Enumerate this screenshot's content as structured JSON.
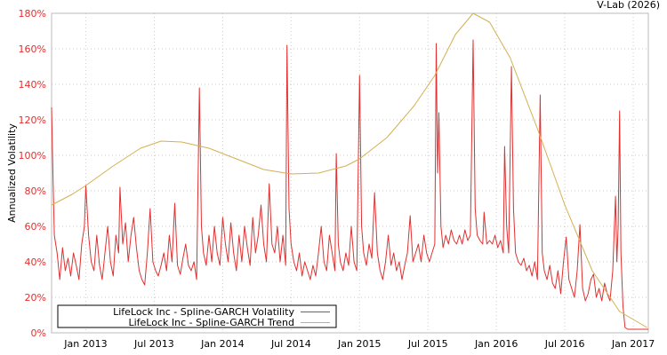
{
  "chart_data": {
    "type": "line",
    "credit": "V-Lab (2026)",
    "ylabel": "Annualized Volatility",
    "xlabel": "",
    "xlim": [
      2012.75,
      2017.11
    ],
    "ylim": [
      0,
      180
    ],
    "grid": true,
    "legend_placement": "bottom-left",
    "y_ticks": [
      0,
      20,
      40,
      60,
      80,
      100,
      120,
      140,
      160,
      180
    ],
    "y_tick_labels": [
      "0%",
      "20%",
      "40%",
      "60%",
      "80%",
      "100%",
      "120%",
      "140%",
      "160%",
      "180%"
    ],
    "x_ticks": [
      2013.0,
      2013.5,
      2014.0,
      2014.5,
      2015.0,
      2015.5,
      2016.0,
      2016.5,
      2017.0
    ],
    "x_tick_labels": [
      "Jan 2013",
      "Jul 2013",
      "Jan 2014",
      "Jul 2014",
      "Jan 2015",
      "Jul 2015",
      "Jan 2016",
      "Jul 2016",
      "Jan 2017"
    ],
    "series": [
      {
        "name": "LifeLock Inc - Spline-GARCH Volatility",
        "color": "#e03030",
        "points": [
          [
            2012.75,
            127
          ],
          [
            2012.76,
            90
          ],
          [
            2012.77,
            55
          ],
          [
            2012.79,
            45
          ],
          [
            2012.81,
            30
          ],
          [
            2012.83,
            48
          ],
          [
            2012.85,
            35
          ],
          [
            2012.87,
            42
          ],
          [
            2012.89,
            32
          ],
          [
            2012.91,
            45
          ],
          [
            2012.93,
            38
          ],
          [
            2012.95,
            30
          ],
          [
            2012.97,
            50
          ],
          [
            2012.99,
            60
          ],
          [
            2013.0,
            83
          ],
          [
            2013.02,
            55
          ],
          [
            2013.04,
            40
          ],
          [
            2013.06,
            35
          ],
          [
            2013.08,
            55
          ],
          [
            2013.1,
            38
          ],
          [
            2013.12,
            30
          ],
          [
            2013.14,
            45
          ],
          [
            2013.16,
            60
          ],
          [
            2013.18,
            40
          ],
          [
            2013.2,
            32
          ],
          [
            2013.22,
            55
          ],
          [
            2013.24,
            45
          ],
          [
            2013.25,
            82
          ],
          [
            2013.27,
            50
          ],
          [
            2013.29,
            62
          ],
          [
            2013.31,
            40
          ],
          [
            2013.33,
            55
          ],
          [
            2013.35,
            65
          ],
          [
            2013.37,
            48
          ],
          [
            2013.39,
            35
          ],
          [
            2013.41,
            30
          ],
          [
            2013.43,
            27
          ],
          [
            2013.45,
            45
          ],
          [
            2013.47,
            70
          ],
          [
            2013.49,
            40
          ],
          [
            2013.51,
            35
          ],
          [
            2013.53,
            32
          ],
          [
            2013.55,
            38
          ],
          [
            2013.57,
            45
          ],
          [
            2013.59,
            35
          ],
          [
            2013.61,
            55
          ],
          [
            2013.63,
            40
          ],
          [
            2013.65,
            73
          ],
          [
            2013.67,
            38
          ],
          [
            2013.69,
            33
          ],
          [
            2013.71,
            42
          ],
          [
            2013.73,
            50
          ],
          [
            2013.75,
            38
          ],
          [
            2013.77,
            35
          ],
          [
            2013.79,
            40
          ],
          [
            2013.81,
            30
          ],
          [
            2013.83,
            138
          ],
          [
            2013.845,
            60
          ],
          [
            2013.86,
            45
          ],
          [
            2013.88,
            38
          ],
          [
            2013.9,
            55
          ],
          [
            2013.92,
            40
          ],
          [
            2013.94,
            60
          ],
          [
            2013.96,
            45
          ],
          [
            2013.98,
            38
          ],
          [
            2014.0,
            65
          ],
          [
            2014.02,
            50
          ],
          [
            2014.04,
            40
          ],
          [
            2014.06,
            62
          ],
          [
            2014.08,
            45
          ],
          [
            2014.1,
            35
          ],
          [
            2014.12,
            55
          ],
          [
            2014.14,
            40
          ],
          [
            2014.16,
            60
          ],
          [
            2014.18,
            48
          ],
          [
            2014.2,
            38
          ],
          [
            2014.22,
            65
          ],
          [
            2014.24,
            45
          ],
          [
            2014.26,
            55
          ],
          [
            2014.28,
            72
          ],
          [
            2014.3,
            50
          ],
          [
            2014.32,
            40
          ],
          [
            2014.34,
            84
          ],
          [
            2014.36,
            50
          ],
          [
            2014.38,
            45
          ],
          [
            2014.4,
            60
          ],
          [
            2014.42,
            40
          ],
          [
            2014.44,
            55
          ],
          [
            2014.46,
            38
          ],
          [
            2014.47,
            162
          ],
          [
            2014.485,
            70
          ],
          [
            2014.5,
            50
          ],
          [
            2014.52,
            40
          ],
          [
            2014.54,
            35
          ],
          [
            2014.56,
            45
          ],
          [
            2014.58,
            32
          ],
          [
            2014.6,
            40
          ],
          [
            2014.62,
            35
          ],
          [
            2014.64,
            30
          ],
          [
            2014.66,
            38
          ],
          [
            2014.68,
            32
          ],
          [
            2014.7,
            45
          ],
          [
            2014.72,
            60
          ],
          [
            2014.74,
            40
          ],
          [
            2014.76,
            35
          ],
          [
            2014.78,
            55
          ],
          [
            2014.8,
            45
          ],
          [
            2014.82,
            35
          ],
          [
            2014.83,
            101
          ],
          [
            2014.845,
            50
          ],
          [
            2014.86,
            40
          ],
          [
            2014.88,
            35
          ],
          [
            2014.9,
            45
          ],
          [
            2014.92,
            38
          ],
          [
            2014.94,
            60
          ],
          [
            2014.96,
            40
          ],
          [
            2014.98,
            35
          ],
          [
            2015.0,
            145
          ],
          [
            2015.015,
            60
          ],
          [
            2015.03,
            45
          ],
          [
            2015.05,
            38
          ],
          [
            2015.07,
            50
          ],
          [
            2015.09,
            42
          ],
          [
            2015.11,
            79
          ],
          [
            2015.13,
            45
          ],
          [
            2015.15,
            35
          ],
          [
            2015.17,
            30
          ],
          [
            2015.19,
            40
          ],
          [
            2015.21,
            55
          ],
          [
            2015.23,
            38
          ],
          [
            2015.25,
            45
          ],
          [
            2015.27,
            35
          ],
          [
            2015.29,
            40
          ],
          [
            2015.31,
            30
          ],
          [
            2015.33,
            38
          ],
          [
            2015.35,
            45
          ],
          [
            2015.37,
            66
          ],
          [
            2015.39,
            40
          ],
          [
            2015.41,
            45
          ],
          [
            2015.43,
            50
          ],
          [
            2015.45,
            40
          ],
          [
            2015.47,
            55
          ],
          [
            2015.49,
            45
          ],
          [
            2015.51,
            40
          ],
          [
            2015.53,
            45
          ],
          [
            2015.55,
            50
          ],
          [
            2015.56,
            163
          ],
          [
            2015.57,
            90
          ],
          [
            2015.58,
            124
          ],
          [
            2015.595,
            60
          ],
          [
            2015.61,
            48
          ],
          [
            2015.63,
            55
          ],
          [
            2015.65,
            50
          ],
          [
            2015.67,
            58
          ],
          [
            2015.69,
            52
          ],
          [
            2015.71,
            50
          ],
          [
            2015.73,
            55
          ],
          [
            2015.75,
            50
          ],
          [
            2015.77,
            58
          ],
          [
            2015.79,
            52
          ],
          [
            2015.81,
            55
          ],
          [
            2015.83,
            165
          ],
          [
            2015.845,
            70
          ],
          [
            2015.86,
            55
          ],
          [
            2015.88,
            52
          ],
          [
            2015.9,
            50
          ],
          [
            2015.91,
            68
          ],
          [
            2015.93,
            50
          ],
          [
            2015.95,
            52
          ],
          [
            2015.97,
            50
          ],
          [
            2015.99,
            55
          ],
          [
            2016.01,
            48
          ],
          [
            2016.03,
            52
          ],
          [
            2016.05,
            45
          ],
          [
            2016.06,
            105
          ],
          [
            2016.075,
            60
          ],
          [
            2016.09,
            45
          ],
          [
            2016.11,
            150
          ],
          [
            2016.125,
            70
          ],
          [
            2016.14,
            45
          ],
          [
            2016.16,
            40
          ],
          [
            2016.18,
            38
          ],
          [
            2016.2,
            42
          ],
          [
            2016.22,
            35
          ],
          [
            2016.24,
            38
          ],
          [
            2016.26,
            32
          ],
          [
            2016.28,
            40
          ],
          [
            2016.3,
            30
          ],
          [
            2016.32,
            134
          ],
          [
            2016.335,
            45
          ],
          [
            2016.35,
            35
          ],
          [
            2016.37,
            30
          ],
          [
            2016.39,
            38
          ],
          [
            2016.41,
            28
          ],
          [
            2016.43,
            25
          ],
          [
            2016.45,
            35
          ],
          [
            2016.47,
            22
          ],
          [
            2016.49,
            40
          ],
          [
            2016.51,
            54
          ],
          [
            2016.53,
            30
          ],
          [
            2016.55,
            25
          ],
          [
            2016.57,
            20
          ],
          [
            2016.59,
            35
          ],
          [
            2016.61,
            61
          ],
          [
            2016.63,
            25
          ],
          [
            2016.65,
            18
          ],
          [
            2016.67,
            22
          ],
          [
            2016.69,
            30
          ],
          [
            2016.71,
            33
          ],
          [
            2016.73,
            20
          ],
          [
            2016.75,
            25
          ],
          [
            2016.77,
            18
          ],
          [
            2016.79,
            28
          ],
          [
            2016.81,
            22
          ],
          [
            2016.83,
            18
          ],
          [
            2016.85,
            35
          ],
          [
            2016.87,
            77
          ],
          [
            2016.88,
            40
          ],
          [
            2016.89,
            60
          ],
          [
            2016.9,
            125
          ],
          [
            2016.91,
            45
          ],
          [
            2016.925,
            15
          ],
          [
            2016.94,
            3
          ],
          [
            2016.96,
            2
          ],
          [
            2017.0,
            2
          ],
          [
            2017.05,
            2
          ],
          [
            2017.11,
            2
          ]
        ]
      },
      {
        "name": "LifeLock Inc - Spline-GARCH Trend",
        "color": "#d4b050",
        "points": [
          [
            2012.75,
            72
          ],
          [
            2012.9,
            78
          ],
          [
            2013.0,
            83
          ],
          [
            2013.2,
            94
          ],
          [
            2013.4,
            104
          ],
          [
            2013.55,
            108
          ],
          [
            2013.7,
            107.5
          ],
          [
            2013.9,
            104
          ],
          [
            2014.1,
            98
          ],
          [
            2014.3,
            92
          ],
          [
            2014.5,
            89.5
          ],
          [
            2014.7,
            90
          ],
          [
            2014.9,
            94
          ],
          [
            2015.0,
            98
          ],
          [
            2015.2,
            110
          ],
          [
            2015.4,
            128
          ],
          [
            2015.55,
            145
          ],
          [
            2015.7,
            168
          ],
          [
            2015.83,
            180
          ],
          [
            2015.95,
            175
          ],
          [
            2016.1,
            155
          ],
          [
            2016.3,
            115
          ],
          [
            2016.5,
            72
          ],
          [
            2016.7,
            35
          ],
          [
            2016.9,
            12
          ],
          [
            2017.1,
            3
          ]
        ]
      }
    ]
  }
}
